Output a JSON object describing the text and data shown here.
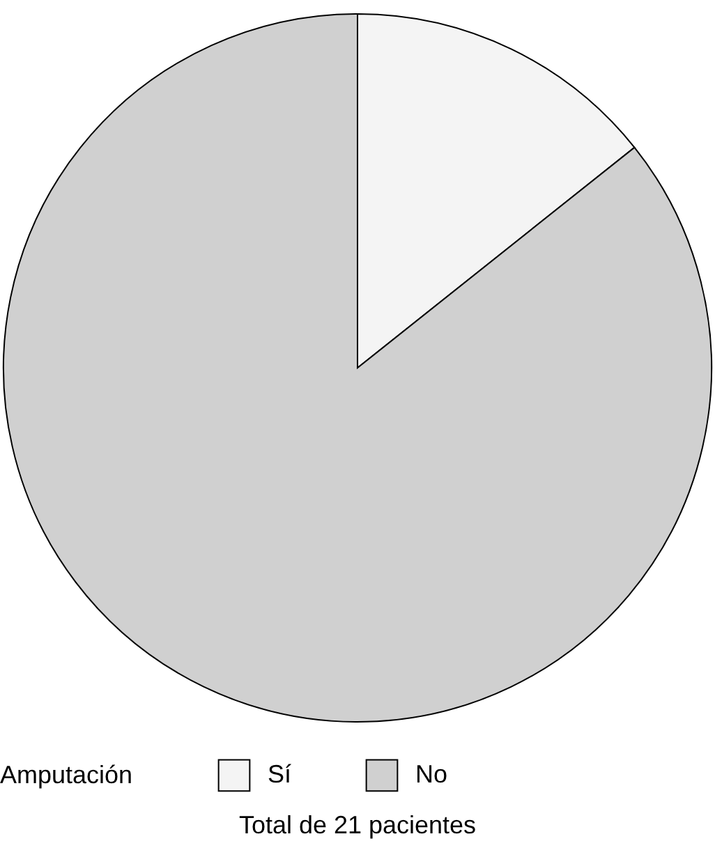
{
  "chart_data": {
    "type": "pie",
    "legend_title": "Amputación",
    "categories": [
      "Sí",
      "No"
    ],
    "values": [
      14.3,
      85.7
    ],
    "colors": [
      "#f4f4f4",
      "#d0d0d0"
    ],
    "legend": "bottom",
    "annotations": [
      "Total de 21 pacientes"
    ]
  }
}
